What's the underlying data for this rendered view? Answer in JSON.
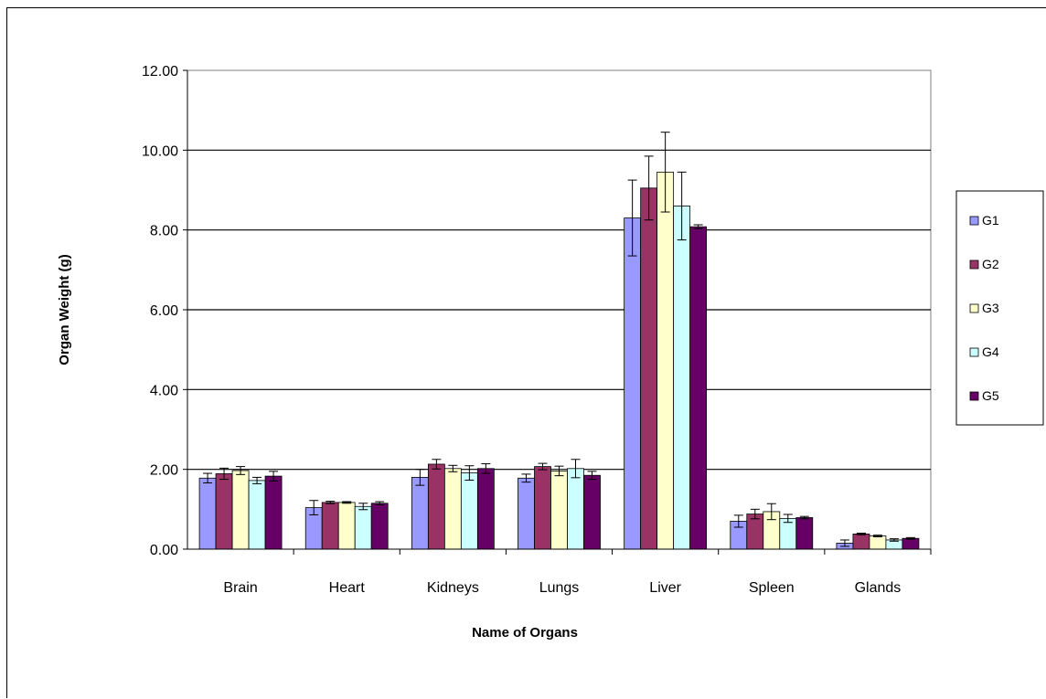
{
  "chart_data": {
    "type": "bar",
    "title": "",
    "xlabel": "Name of Organs",
    "ylabel": "Organ Weight (g)",
    "ylim": [
      0,
      12
    ],
    "yticks": [
      "0.00",
      "2.00",
      "4.00",
      "6.00",
      "8.00",
      "10.00",
      "12.00"
    ],
    "categories": [
      "Brain",
      "Heart",
      "Kidneys",
      "Lungs",
      "Liver",
      "Spleen",
      "Glands"
    ],
    "grid": true,
    "legend": "right",
    "series": [
      {
        "name": "G1",
        "color": "#9999FF",
        "values": [
          1.78,
          1.04,
          1.8,
          1.78,
          8.3,
          0.7,
          0.15
        ],
        "errors": [
          0.12,
          0.18,
          0.2,
          0.1,
          0.95,
          0.15,
          0.08
        ]
      },
      {
        "name": "G2",
        "color": "#993366",
        "values": [
          1.89,
          1.17,
          2.13,
          2.07,
          9.05,
          0.88,
          0.38
        ],
        "errors": [
          0.14,
          0.03,
          0.12,
          0.08,
          0.8,
          0.12,
          0.02
        ]
      },
      {
        "name": "G3",
        "color": "#FFFFCC",
        "values": [
          1.97,
          1.17,
          2.02,
          1.96,
          9.45,
          0.94,
          0.33
        ],
        "errors": [
          0.1,
          0.02,
          0.08,
          0.12,
          1.0,
          0.2,
          0.02
        ]
      },
      {
        "name": "G4",
        "color": "#CCFFFF",
        "values": [
          1.72,
          1.07,
          1.91,
          2.02,
          8.6,
          0.77,
          0.23
        ],
        "errors": [
          0.08,
          0.08,
          0.18,
          0.23,
          0.85,
          0.1,
          0.03
        ]
      },
      {
        "name": "G5",
        "color": "#660066",
        "values": [
          1.83,
          1.15,
          2.02,
          1.85,
          8.08,
          0.79,
          0.27
        ],
        "errors": [
          0.12,
          0.04,
          0.12,
          0.1,
          0.05,
          0.03,
          0.02
        ]
      }
    ]
  }
}
